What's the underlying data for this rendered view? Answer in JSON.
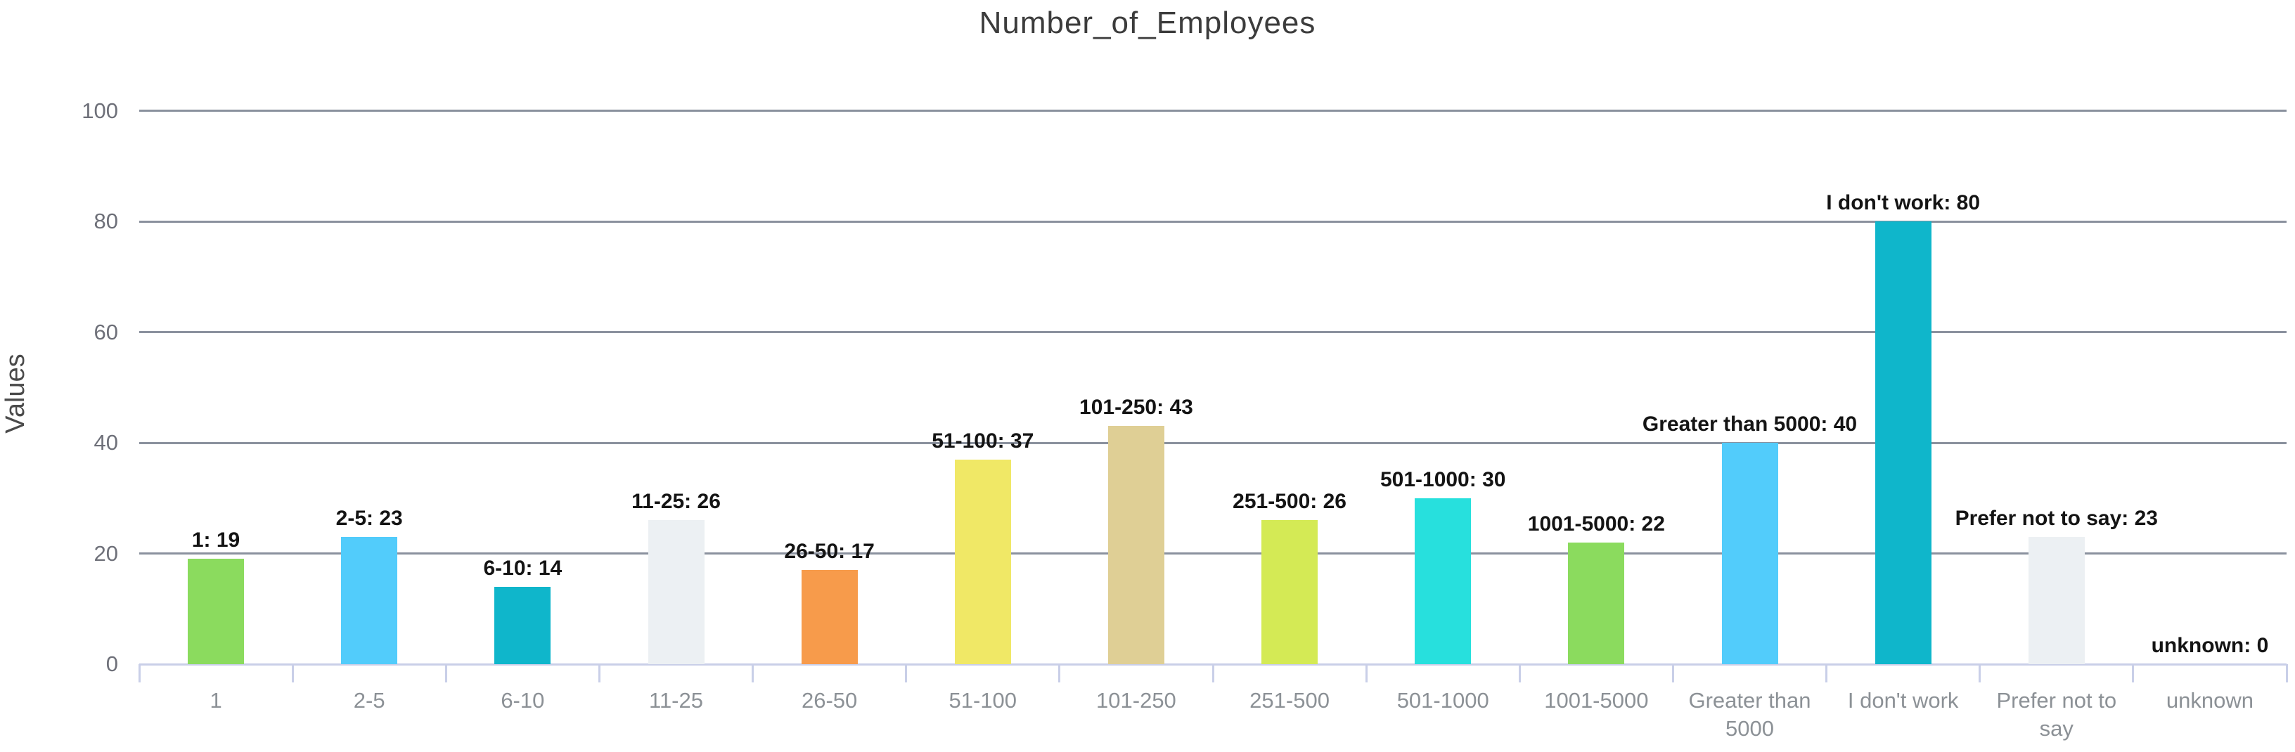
{
  "chart_data": {
    "type": "bar",
    "title": "Number_of_Employees",
    "ylabel": "Values",
    "xlabel": "",
    "ylim": [
      0,
      100
    ],
    "yticks": [
      0,
      20,
      40,
      60,
      80,
      100
    ],
    "grid": true,
    "legend_position": "none",
    "categories": [
      "1",
      "2-5",
      "6-10",
      "11-25",
      "26-50",
      "51-100",
      "101-250",
      "251-500",
      "501-1000",
      "1001-5000",
      "Greater than 5000",
      "I don't work",
      "Prefer not to say",
      "unknown"
    ],
    "values": [
      19,
      23,
      14,
      26,
      17,
      37,
      43,
      26,
      30,
      22,
      40,
      80,
      23,
      0
    ],
    "bar_labels": [
      "1: 19",
      "2-5: 23",
      "6-10: 14",
      "11-25: 26",
      "26-50: 17",
      "51-100: 37",
      "101-250: 43",
      "251-500: 26",
      "501-1000: 30",
      "1001-5000: 22",
      "Greater than 5000: 40",
      "I don't work: 80",
      "Prefer not to say: 23",
      "unknown: 0"
    ],
    "bar_colors": [
      "#8bdb5e",
      "#52ccfb",
      "#0fb6cb",
      "#ecf0f3",
      "#f79b4b",
      "#f0e866",
      "#dfcf95",
      "#d4ea55",
      "#27e0dd",
      "#8bdb5e",
      "#52ccfb",
      "#0fb6cb",
      "#ecf0f3",
      "#f79b4b"
    ],
    "colors": {
      "gridline": "#8a919e",
      "axis_line": "#c9cfe8",
      "value_label": "#141414",
      "x_tick_label": "#8c9196",
      "y_tick_label": "#6e7079",
      "title": "#3c3c3c",
      "y_axis_title": "#4a4a4a",
      "background": "#ffffff"
    }
  }
}
